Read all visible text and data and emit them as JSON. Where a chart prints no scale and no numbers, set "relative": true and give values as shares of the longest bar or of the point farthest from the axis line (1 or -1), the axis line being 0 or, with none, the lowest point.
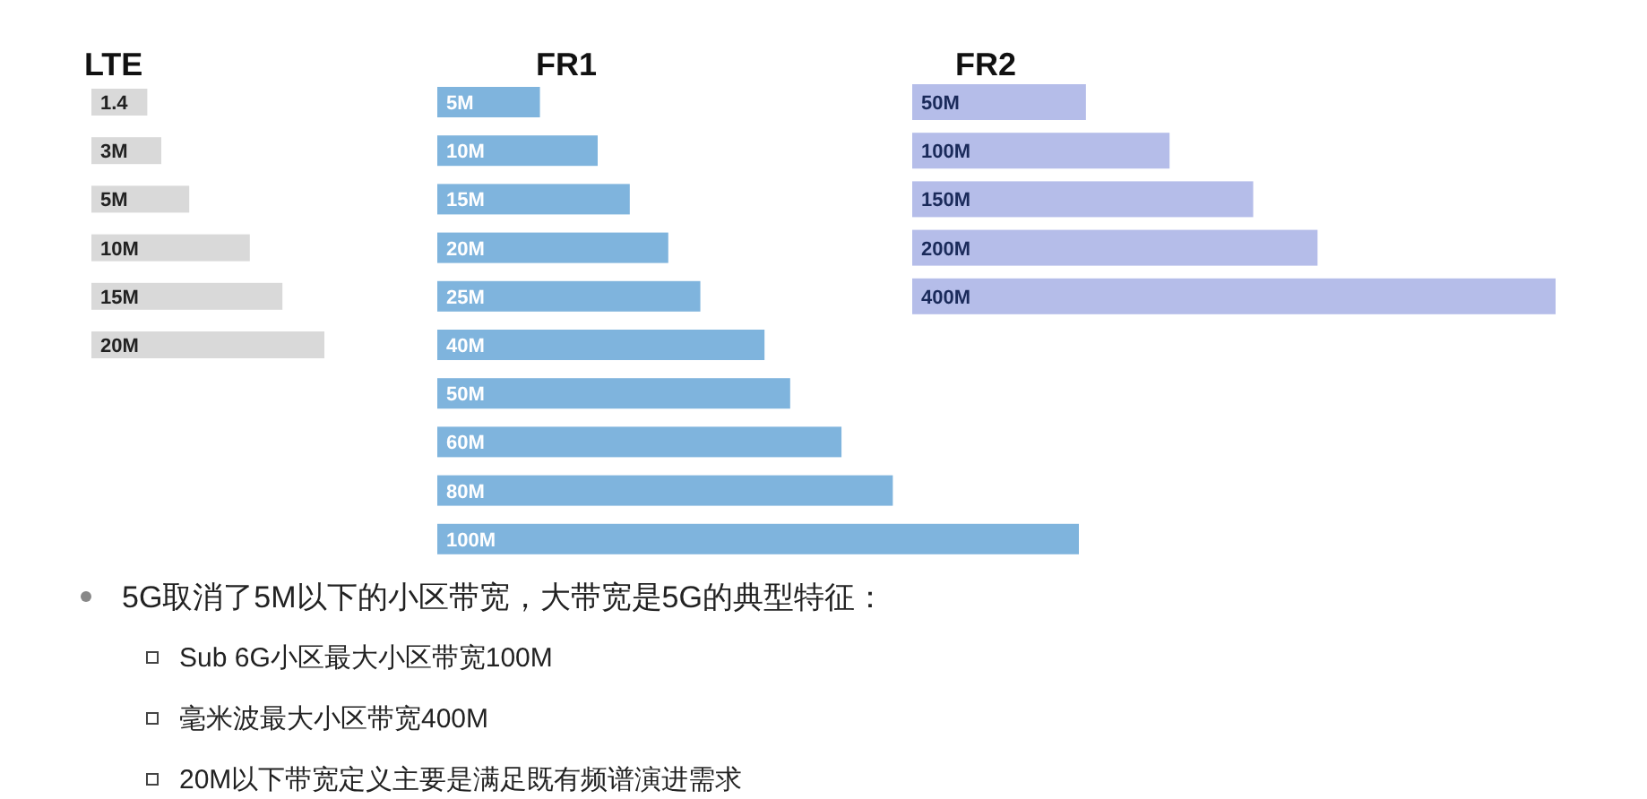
{
  "chart_data": [
    {
      "type": "bar",
      "orientation": "horizontal",
      "relative": true,
      "title": "LTE",
      "categories": [
        "1.4",
        "3M",
        "5M",
        "10M",
        "15M",
        "20M"
      ],
      "series": [
        {
          "color": "#d9d9d9",
          "values": [
            0.24,
            0.3,
            0.42,
            0.68,
            0.82,
            1
          ]
        }
      ]
    },
    {
      "type": "bar",
      "orientation": "horizontal",
      "relative": true,
      "title": "FR1",
      "categories": [
        "5M",
        "10M",
        "15M",
        "20M",
        "25M",
        "40M",
        "50M",
        "60M",
        "80M",
        "100M"
      ],
      "series": [
        {
          "color": "#7fb4dd",
          "values": [
            0.16,
            0.25,
            0.3,
            0.36,
            0.41,
            0.51,
            0.55,
            0.63,
            0.71,
            1
          ]
        }
      ]
    },
    {
      "type": "bar",
      "orientation": "horizontal",
      "relative": true,
      "title": "FR2",
      "categories": [
        "50M",
        "100M",
        "150M",
        "200M",
        "400M"
      ],
      "series": [
        {
          "color": "#b5bde9",
          "values": [
            0.27,
            0.4,
            0.53,
            0.63,
            1
          ]
        }
      ]
    },
    {
      "type": "other",
      "annotations": [
        "5G取消了5M以下的小区带宽，大带宽是5G的典型特征：",
        "Sub 6G小区最大小区带宽100M",
        "毫米波最大小区带宽400M",
        "20M以下带宽定义主要是满足既有频谱演进需求"
      ]
    }
  ]
}
